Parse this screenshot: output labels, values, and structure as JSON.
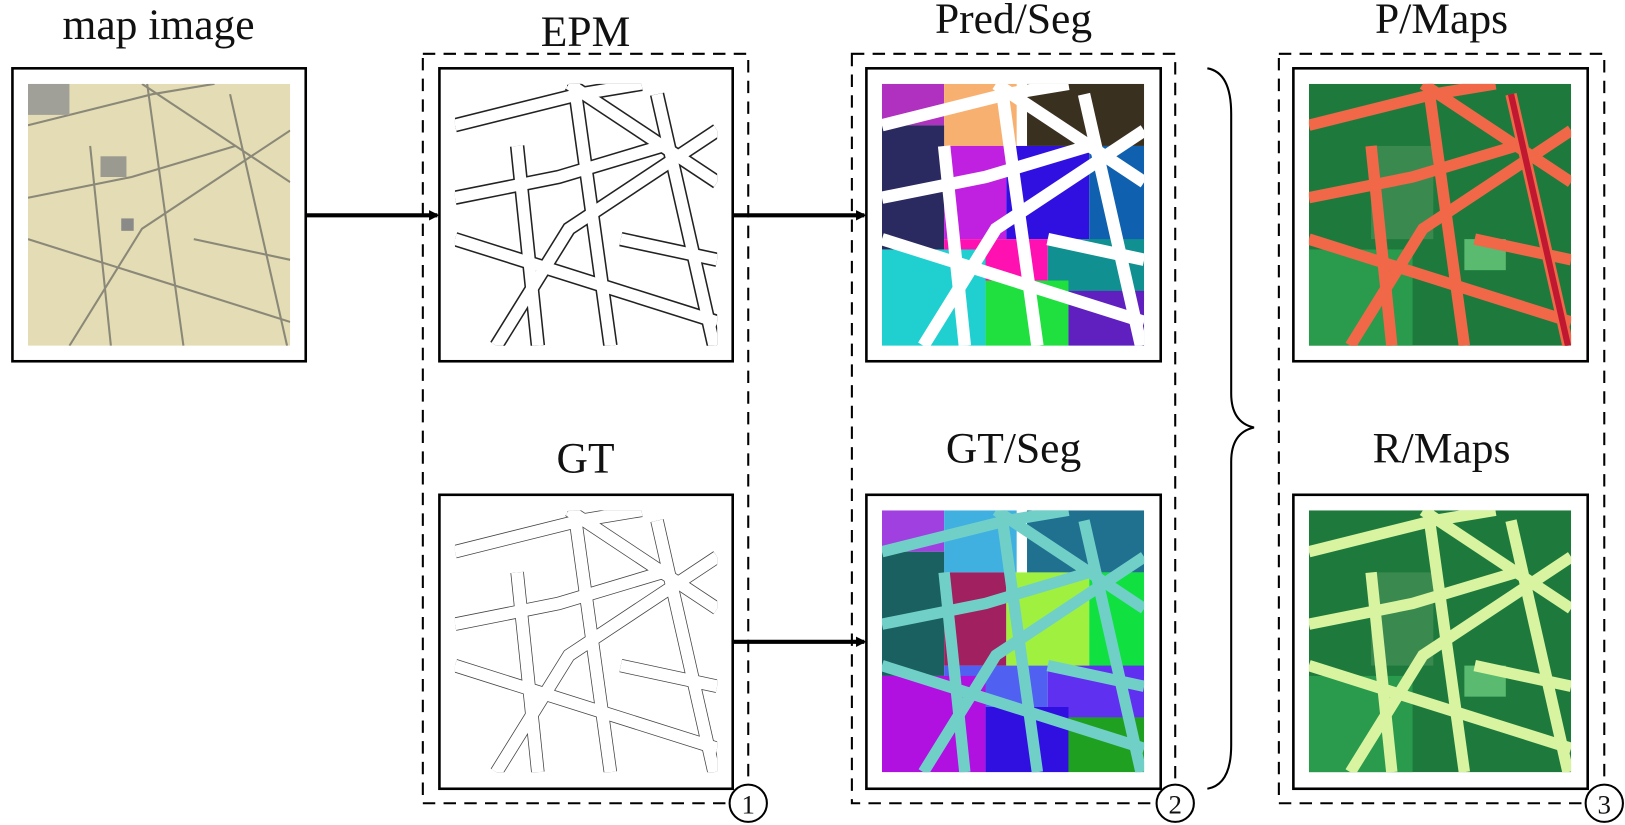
{
  "panels": {
    "map_image": "map image",
    "epm": "EPM",
    "gt": "GT",
    "pred_seg": "Pred/Seg",
    "gt_seg": "GT/Seg",
    "p_maps": "P/Maps",
    "r_maps": "R/Maps"
  },
  "steps": [
    "1",
    "2",
    "3"
  ]
}
